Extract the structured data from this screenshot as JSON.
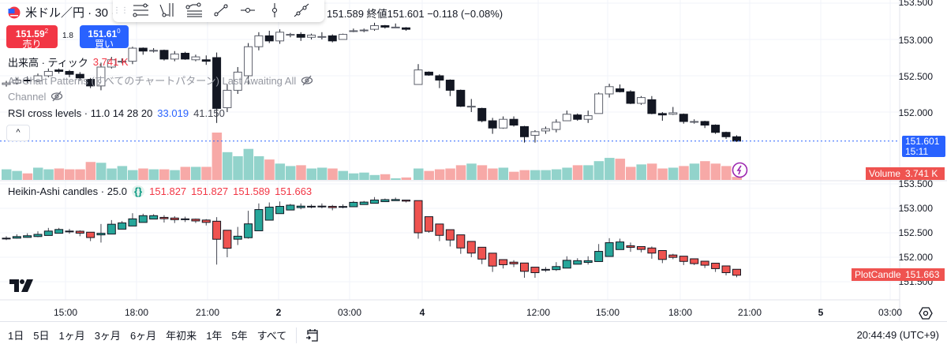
{
  "header": {
    "symbol_title": "米ドル／円 · 30 ·",
    "ohlc_visible": "151.589 終値151.601 −0.118 (−0.08%)",
    "flag_icon": "us-flag-icon"
  },
  "drawing_toolbar": {
    "tools": [
      "horizontal-lines-icon",
      "pitchfork-icon",
      "fib-retracement-icon",
      "trend-line-icon",
      "horizontal-ray-icon",
      "vertical-line-icon",
      "extended-line-icon"
    ]
  },
  "trade": {
    "sell_price_main": "151.59",
    "sell_price_sup": "2",
    "sell_label": "売り",
    "spread": "1.8",
    "buy_price_main": "151.61",
    "buy_price_sup": "0",
    "buy_label": "買い"
  },
  "legends": {
    "volume_name": "出来高 · ティック",
    "volume_value": "3.741 K",
    "patterns": "All Chart Patterns (すべてのチャートパターン) Last Awaiting All",
    "channel": "Channel",
    "rsi_name": "RSI cross levels · 11.0 14 28 20",
    "rsi_value1": "33.019",
    "rsi_value2": "41.150",
    "collapse": "^",
    "ha_name": "Heikin-Ashi candles · 25.0",
    "ha_values": [
      "151.827",
      "151.827",
      "151.589",
      "151.663"
    ]
  },
  "price_axis": {
    "main_ticks": [
      "153.500",
      "153.000",
      "152.500",
      "152.000"
    ],
    "lower_ticks": [
      "153.500",
      "153.000",
      "152.500",
      "152.000",
      "151.500"
    ],
    "last_price": "151.601",
    "countdown": "15:11",
    "volume_tag": "Volume",
    "volume_tag_value": "3.741 K",
    "plot_tag": "PlotCandle",
    "plot_tag_value": "151.663"
  },
  "time_axis": [
    "15:00",
    "18:00",
    "21:00",
    "2",
    "03:00",
    "4",
    "12:00",
    "15:00",
    "18:00",
    "21:00",
    "5",
    "03:00"
  ],
  "bottom_bar": {
    "ranges": [
      "1日",
      "5日",
      "1ヶ月",
      "3ヶ月",
      "6ヶ月",
      "年初来",
      "1年",
      "5年",
      "すべて"
    ],
    "clock": "20:44:49 (UTC+9)"
  },
  "colors": {
    "up": "#26a69a",
    "down": "#ef5350",
    "vol_up": "#92d3cb",
    "vol_down": "#f7a9a7",
    "last_price": "#2962ff",
    "candle_dark": "#131722",
    "alert": "#9c27b0"
  },
  "chart_data": {
    "type": "candlestick",
    "ohlc_segment1": [
      [
        152.38,
        152.4,
        152.43,
        152.35
      ],
      [
        152.4,
        152.44,
        152.47,
        152.38
      ],
      [
        152.44,
        152.43,
        152.49,
        152.4
      ],
      [
        152.43,
        152.5,
        152.53,
        152.41
      ],
      [
        152.5,
        152.56,
        152.6,
        152.48
      ],
      [
        152.58,
        152.56,
        152.6,
        152.53
      ],
      [
        152.56,
        152.52,
        152.58,
        152.48
      ],
      [
        152.52,
        152.47,
        152.55,
        152.43
      ],
      [
        152.45,
        152.36,
        152.47,
        152.33
      ],
      [
        152.36,
        152.62,
        152.68,
        152.3
      ],
      [
        152.62,
        152.72,
        152.76,
        152.6
      ],
      [
        152.7,
        152.7,
        152.74,
        152.67
      ],
      [
        152.7,
        152.88,
        152.9,
        152.66
      ],
      [
        152.88,
        152.84,
        152.89,
        152.79
      ],
      [
        152.85,
        152.85,
        152.88,
        152.82
      ],
      [
        152.85,
        152.73,
        152.86,
        152.71
      ],
      [
        152.73,
        152.8,
        152.84,
        152.7
      ],
      [
        152.81,
        152.73,
        152.83,
        152.72
      ],
      [
        152.72,
        152.76,
        152.79,
        152.7
      ],
      [
        152.72,
        152.7,
        152.78,
        152.65
      ],
      [
        152.75,
        152.05,
        152.82,
        151.85
      ],
      [
        152.06,
        152.3,
        152.38,
        152.0
      ],
      [
        152.3,
        152.55,
        152.62,
        152.25
      ],
      [
        152.5,
        152.9,
        152.95,
        152.38
      ],
      [
        152.9,
        153.05,
        153.1,
        152.85
      ],
      [
        153.05,
        152.98,
        153.12,
        152.95
      ],
      [
        152.98,
        153.1,
        153.14,
        152.94
      ],
      [
        153.07,
        153.07,
        153.09,
        153.03
      ],
      [
        153.07,
        153.03,
        153.1,
        152.98
      ],
      [
        153.03,
        153.06,
        153.08,
        153.0
      ],
      [
        153.04,
        153.04,
        153.1,
        153.0
      ],
      [
        153.05,
        152.98,
        153.07,
        152.96
      ],
      [
        153.0,
        153.07,
        153.08,
        153.0
      ],
      [
        153.12,
        153.12,
        153.15,
        153.1
      ],
      [
        153.13,
        153.13,
        153.15,
        153.1
      ],
      [
        153.14,
        153.19,
        153.23,
        153.12
      ],
      [
        153.19,
        153.17,
        153.2,
        153.15
      ],
      [
        153.17,
        153.17,
        153.22,
        153.16
      ],
      [
        153.16,
        153.14,
        153.17,
        153.12
      ]
    ],
    "ohlc_segment2": [
      [
        152.38,
        152.58,
        152.66,
        152.38
      ],
      [
        152.55,
        152.51,
        152.56,
        152.5
      ],
      [
        152.5,
        152.44,
        152.52,
        152.33
      ],
      [
        152.44,
        152.3,
        152.45,
        152.22
      ],
      [
        152.3,
        152.08,
        152.31,
        152.07
      ],
      [
        152.08,
        152.08,
        152.18,
        152.0
      ],
      [
        152.05,
        151.88,
        152.06,
        151.86
      ],
      [
        151.88,
        151.78,
        151.92,
        151.7
      ],
      [
        151.78,
        151.9,
        151.94,
        151.77
      ],
      [
        151.9,
        151.82,
        151.94,
        151.8
      ],
      [
        151.8,
        151.66,
        151.81,
        151.58
      ],
      [
        151.68,
        151.73,
        151.75,
        151.58
      ],
      [
        151.74,
        151.77,
        151.8,
        151.7
      ],
      [
        151.76,
        151.86,
        151.9,
        151.72
      ],
      [
        151.88,
        151.97,
        152.02,
        151.88
      ],
      [
        151.96,
        151.9,
        151.98,
        151.88
      ],
      [
        151.9,
        151.95,
        152.02,
        151.85
      ],
      [
        151.98,
        152.25,
        152.27,
        151.98
      ],
      [
        152.25,
        152.35,
        152.39,
        152.2
      ],
      [
        152.32,
        152.28,
        152.38,
        152.27
      ],
      [
        152.28,
        152.12,
        152.3,
        152.11
      ],
      [
        152.12,
        152.2,
        152.22,
        152.1
      ],
      [
        152.17,
        151.98,
        152.22,
        151.97
      ],
      [
        151.98,
        151.96,
        152.0,
        151.88
      ],
      [
        151.97,
        151.99,
        152.07,
        151.96
      ],
      [
        151.97,
        151.87,
        151.98,
        151.84
      ],
      [
        151.87,
        151.87,
        151.9,
        151.84
      ],
      [
        151.87,
        151.82,
        151.88,
        151.78
      ],
      [
        151.82,
        151.72,
        151.83,
        151.7
      ],
      [
        151.72,
        151.66,
        151.73,
        151.63
      ],
      [
        151.66,
        151.6,
        151.68,
        151.59
      ]
    ],
    "volume_segment1": [
      13,
      11,
      8,
      15,
      13,
      14,
      13,
      13,
      22,
      21,
      14,
      17,
      12,
      14,
      13,
      13,
      12,
      16,
      16,
      16,
      58,
      34,
      29,
      38,
      29,
      25,
      20,
      17,
      18,
      14,
      15,
      14,
      11,
      8,
      9,
      6,
      7,
      2,
      3
    ],
    "volume_segment2": [
      14,
      11,
      13,
      14,
      18,
      20,
      18,
      14,
      15,
      10,
      12,
      12,
      12,
      13,
      15,
      18,
      18,
      23,
      27,
      26,
      16,
      19,
      20,
      14,
      15,
      17,
      20,
      23,
      20,
      17,
      3.741
    ],
    "volume_unit": "K",
    "main_ylim": [
      151.5,
      153.5
    ],
    "lower_ylim": [
      151.4,
      153.5
    ]
  }
}
